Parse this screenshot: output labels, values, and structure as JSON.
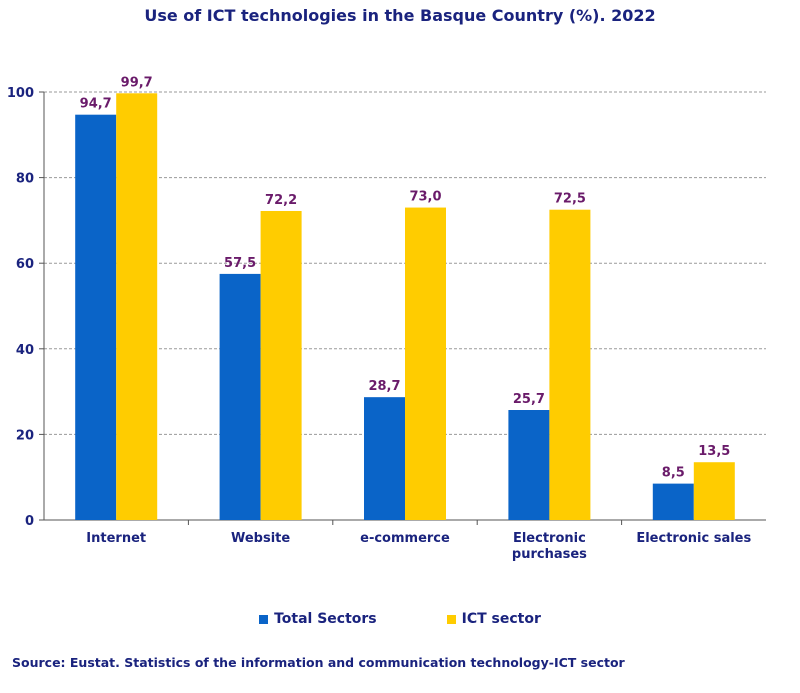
{
  "chart_data": {
    "type": "bar",
    "title": "Use of ICT technologies in the Basque Country (%). 2022",
    "categories": [
      "Internet",
      "Website",
      "e-commerce",
      "Electronic|purchases",
      "Electronic sales"
    ],
    "series": [
      {
        "name": "Total Sectors",
        "color": "#0a64c8",
        "values": [
          94.7,
          57.5,
          28.7,
          25.7,
          8.5
        ],
        "labels": [
          "94,7",
          "57,5",
          "28,7",
          "25,7",
          "8,5"
        ]
      },
      {
        "name": "ICT sector",
        "color": "#ffcc00",
        "values": [
          99.7,
          72.2,
          73.0,
          72.5,
          13.5
        ],
        "labels": [
          "99,7",
          "72,2",
          "73,0",
          "72,5",
          "13,5"
        ]
      }
    ],
    "ylim": [
      0,
      100
    ],
    "yticks": [
      0,
      20,
      40,
      60,
      80,
      100
    ],
    "xlabel": "",
    "ylabel": "",
    "grid": true,
    "legend": "bottom",
    "label_color": "#6a1b6a"
  },
  "source": "Source: Eustat. Statistics of the information and communication technology-ICT sector"
}
